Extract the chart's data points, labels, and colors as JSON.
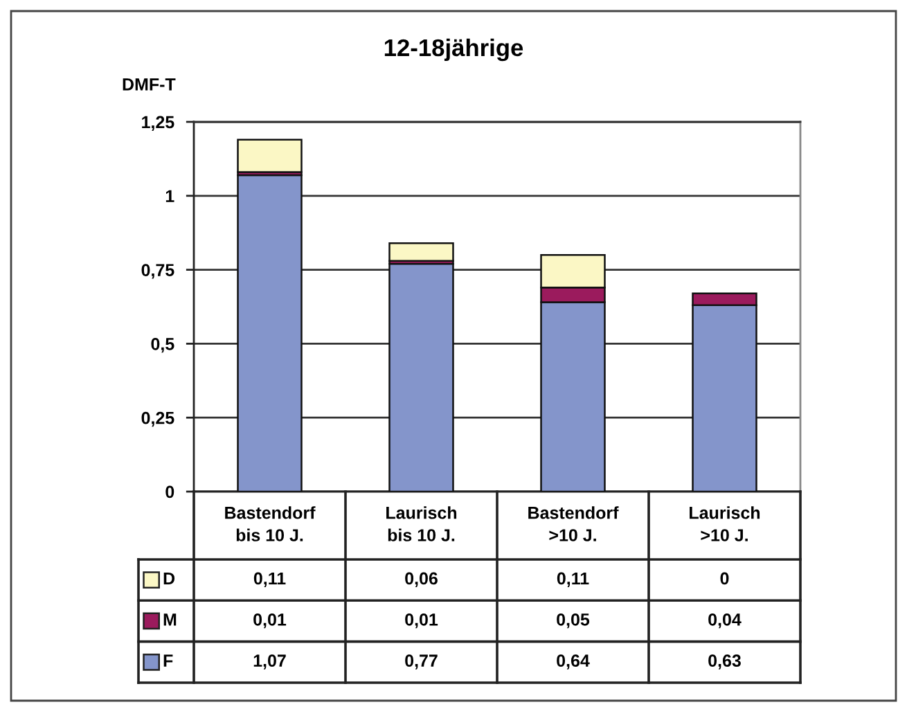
{
  "chart_data": {
    "type": "bar",
    "title": "12-18jährige",
    "ylabel": "DMF-T",
    "stacked": true,
    "categories": [
      "Bastendorf\nbis 10 J.",
      "Laurisch\nbis 10 J.",
      "Bastendorf\n>10 J.",
      "Laurisch\n>10 J."
    ],
    "series": [
      {
        "name": "F",
        "color": "#8495cb",
        "values": [
          1.07,
          0.77,
          0.64,
          0.63
        ],
        "value_labels": [
          "1,07",
          "0,77",
          "0,64",
          "0,63"
        ]
      },
      {
        "name": "M",
        "color": "#9b1b5d",
        "values": [
          0.01,
          0.01,
          0.05,
          0.04
        ],
        "value_labels": [
          "0,01",
          "0,01",
          "0,05",
          "0,04"
        ]
      },
      {
        "name": "D",
        "color": "#fbf7c5",
        "values": [
          0.11,
          0.06,
          0.11,
          0
        ],
        "value_labels": [
          "0,11",
          "0,06",
          "0,11",
          "0"
        ]
      }
    ],
    "ylim": [
      0,
      1.25
    ],
    "yticks": [
      0,
      {
        "value": 0.25,
        "label": "0,25"
      },
      {
        "value": 0.5,
        "label": "0,5"
      },
      {
        "value": 0.75,
        "label": "0,75"
      },
      1,
      {
        "value": 1.25,
        "label": "1,25"
      }
    ],
    "grid": "y",
    "legend": "bottom left"
  }
}
